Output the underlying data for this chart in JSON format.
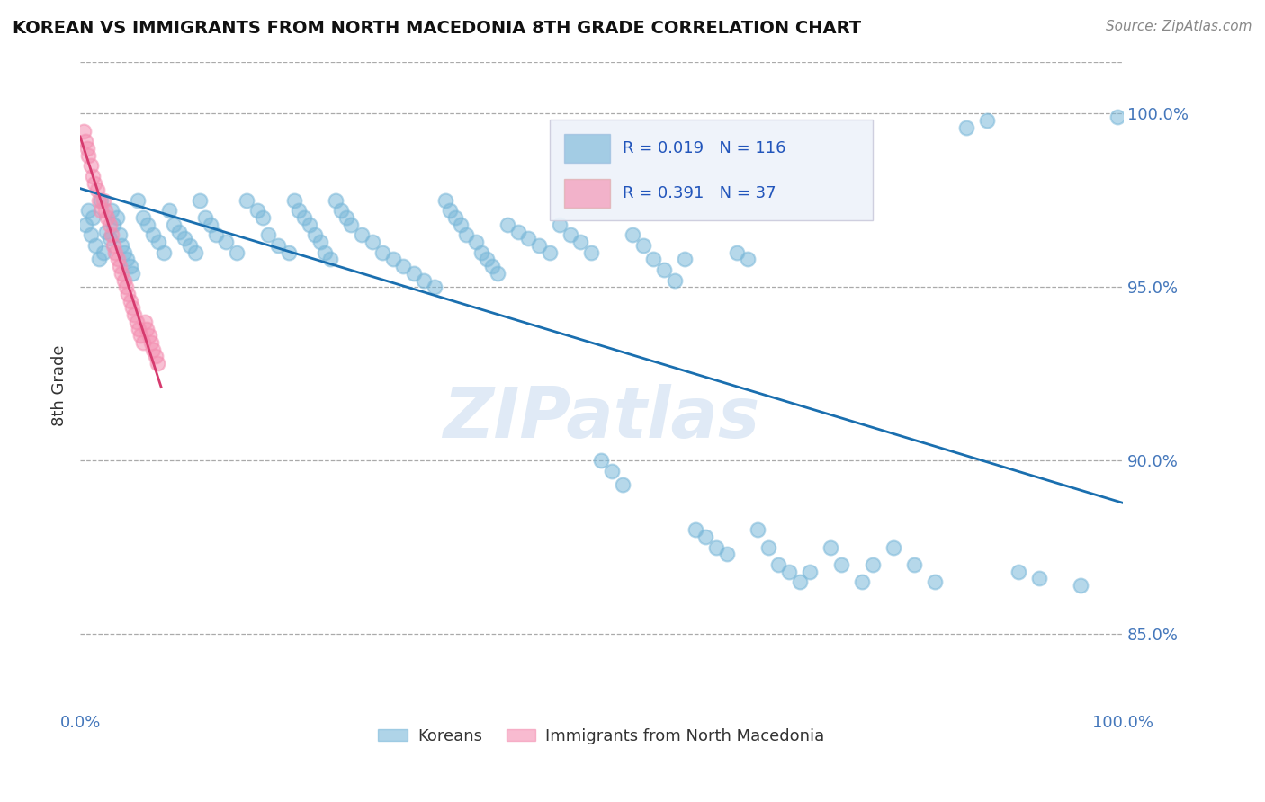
{
  "title": "KOREAN VS IMMIGRANTS FROM NORTH MACEDONIA 8TH GRADE CORRELATION CHART",
  "source_text": "Source: ZipAtlas.com",
  "ylabel": "8th Grade",
  "xlim": [
    0.0,
    1.0
  ],
  "ylim": [
    0.828,
    1.015
  ],
  "yticks": [
    0.85,
    0.9,
    0.95,
    1.0
  ],
  "ytick_labels": [
    "85.0%",
    "90.0%",
    "95.0%",
    "100.0%"
  ],
  "xticks": [
    0.0,
    0.25,
    0.5,
    0.75,
    1.0
  ],
  "xtick_labels": [
    "0.0%",
    "",
    "",
    "",
    "100.0%"
  ],
  "blue_color": "#7ab8d9",
  "pink_color": "#f48fb1",
  "blue_line_color": "#1a6faf",
  "pink_line_color": "#d63a6e",
  "legend_R_blue": "0.019",
  "legend_N_blue": "116",
  "legend_R_pink": "0.391",
  "legend_N_pink": "37",
  "watermark": "ZIPatlas",
  "blue_scatter_x": [
    0.005,
    0.008,
    0.01,
    0.012,
    0.015,
    0.018,
    0.02,
    0.022,
    0.025,
    0.028,
    0.03,
    0.032,
    0.035,
    0.038,
    0.04,
    0.042,
    0.045,
    0.048,
    0.05,
    0.055,
    0.06,
    0.065,
    0.07,
    0.075,
    0.08,
    0.085,
    0.09,
    0.095,
    0.1,
    0.105,
    0.11,
    0.115,
    0.12,
    0.125,
    0.13,
    0.14,
    0.15,
    0.16,
    0.17,
    0.175,
    0.18,
    0.19,
    0.2,
    0.205,
    0.21,
    0.215,
    0.22,
    0.225,
    0.23,
    0.235,
    0.24,
    0.245,
    0.25,
    0.255,
    0.26,
    0.27,
    0.28,
    0.29,
    0.3,
    0.31,
    0.32,
    0.33,
    0.34,
    0.35,
    0.355,
    0.36,
    0.365,
    0.37,
    0.38,
    0.385,
    0.39,
    0.395,
    0.4,
    0.41,
    0.42,
    0.43,
    0.44,
    0.45,
    0.46,
    0.47,
    0.48,
    0.49,
    0.5,
    0.51,
    0.52,
    0.53,
    0.54,
    0.55,
    0.56,
    0.57,
    0.58,
    0.59,
    0.6,
    0.61,
    0.62,
    0.63,
    0.64,
    0.65,
    0.66,
    0.67,
    0.68,
    0.69,
    0.7,
    0.72,
    0.73,
    0.75,
    0.76,
    0.78,
    0.8,
    0.82,
    0.85,
    0.87,
    0.9,
    0.92,
    0.96,
    0.995
  ],
  "blue_scatter_y": [
    0.968,
    0.972,
    0.965,
    0.97,
    0.962,
    0.958,
    0.975,
    0.96,
    0.966,
    0.964,
    0.972,
    0.968,
    0.97,
    0.965,
    0.962,
    0.96,
    0.958,
    0.956,
    0.954,
    0.975,
    0.97,
    0.968,
    0.965,
    0.963,
    0.96,
    0.972,
    0.968,
    0.966,
    0.964,
    0.962,
    0.96,
    0.975,
    0.97,
    0.968,
    0.965,
    0.963,
    0.96,
    0.975,
    0.972,
    0.97,
    0.965,
    0.962,
    0.96,
    0.975,
    0.972,
    0.97,
    0.968,
    0.965,
    0.963,
    0.96,
    0.958,
    0.975,
    0.972,
    0.97,
    0.968,
    0.965,
    0.963,
    0.96,
    0.958,
    0.956,
    0.954,
    0.952,
    0.95,
    0.975,
    0.972,
    0.97,
    0.968,
    0.965,
    0.963,
    0.96,
    0.958,
    0.956,
    0.954,
    0.968,
    0.966,
    0.964,
    0.962,
    0.96,
    0.968,
    0.965,
    0.963,
    0.96,
    0.9,
    0.897,
    0.893,
    0.965,
    0.962,
    0.958,
    0.955,
    0.952,
    0.958,
    0.88,
    0.878,
    0.875,
    0.873,
    0.96,
    0.958,
    0.88,
    0.875,
    0.87,
    0.868,
    0.865,
    0.868,
    0.875,
    0.87,
    0.865,
    0.87,
    0.875,
    0.87,
    0.865,
    0.996,
    0.998,
    0.868,
    0.866,
    0.864,
    0.999
  ],
  "pink_scatter_x": [
    0.003,
    0.005,
    0.007,
    0.008,
    0.01,
    0.012,
    0.014,
    0.016,
    0.018,
    0.02,
    0.022,
    0.024,
    0.026,
    0.028,
    0.03,
    0.032,
    0.034,
    0.036,
    0.038,
    0.04,
    0.042,
    0.044,
    0.046,
    0.048,
    0.05,
    0.052,
    0.054,
    0.056,
    0.058,
    0.06,
    0.062,
    0.064,
    0.066,
    0.068,
    0.07,
    0.072,
    0.074
  ],
  "pink_scatter_y": [
    0.995,
    0.992,
    0.99,
    0.988,
    0.985,
    0.982,
    0.98,
    0.978,
    0.975,
    0.972,
    0.975,
    0.972,
    0.97,
    0.968,
    0.965,
    0.962,
    0.96,
    0.958,
    0.956,
    0.954,
    0.952,
    0.95,
    0.948,
    0.946,
    0.944,
    0.942,
    0.94,
    0.938,
    0.936,
    0.934,
    0.94,
    0.938,
    0.936,
    0.934,
    0.932,
    0.93,
    0.928
  ]
}
